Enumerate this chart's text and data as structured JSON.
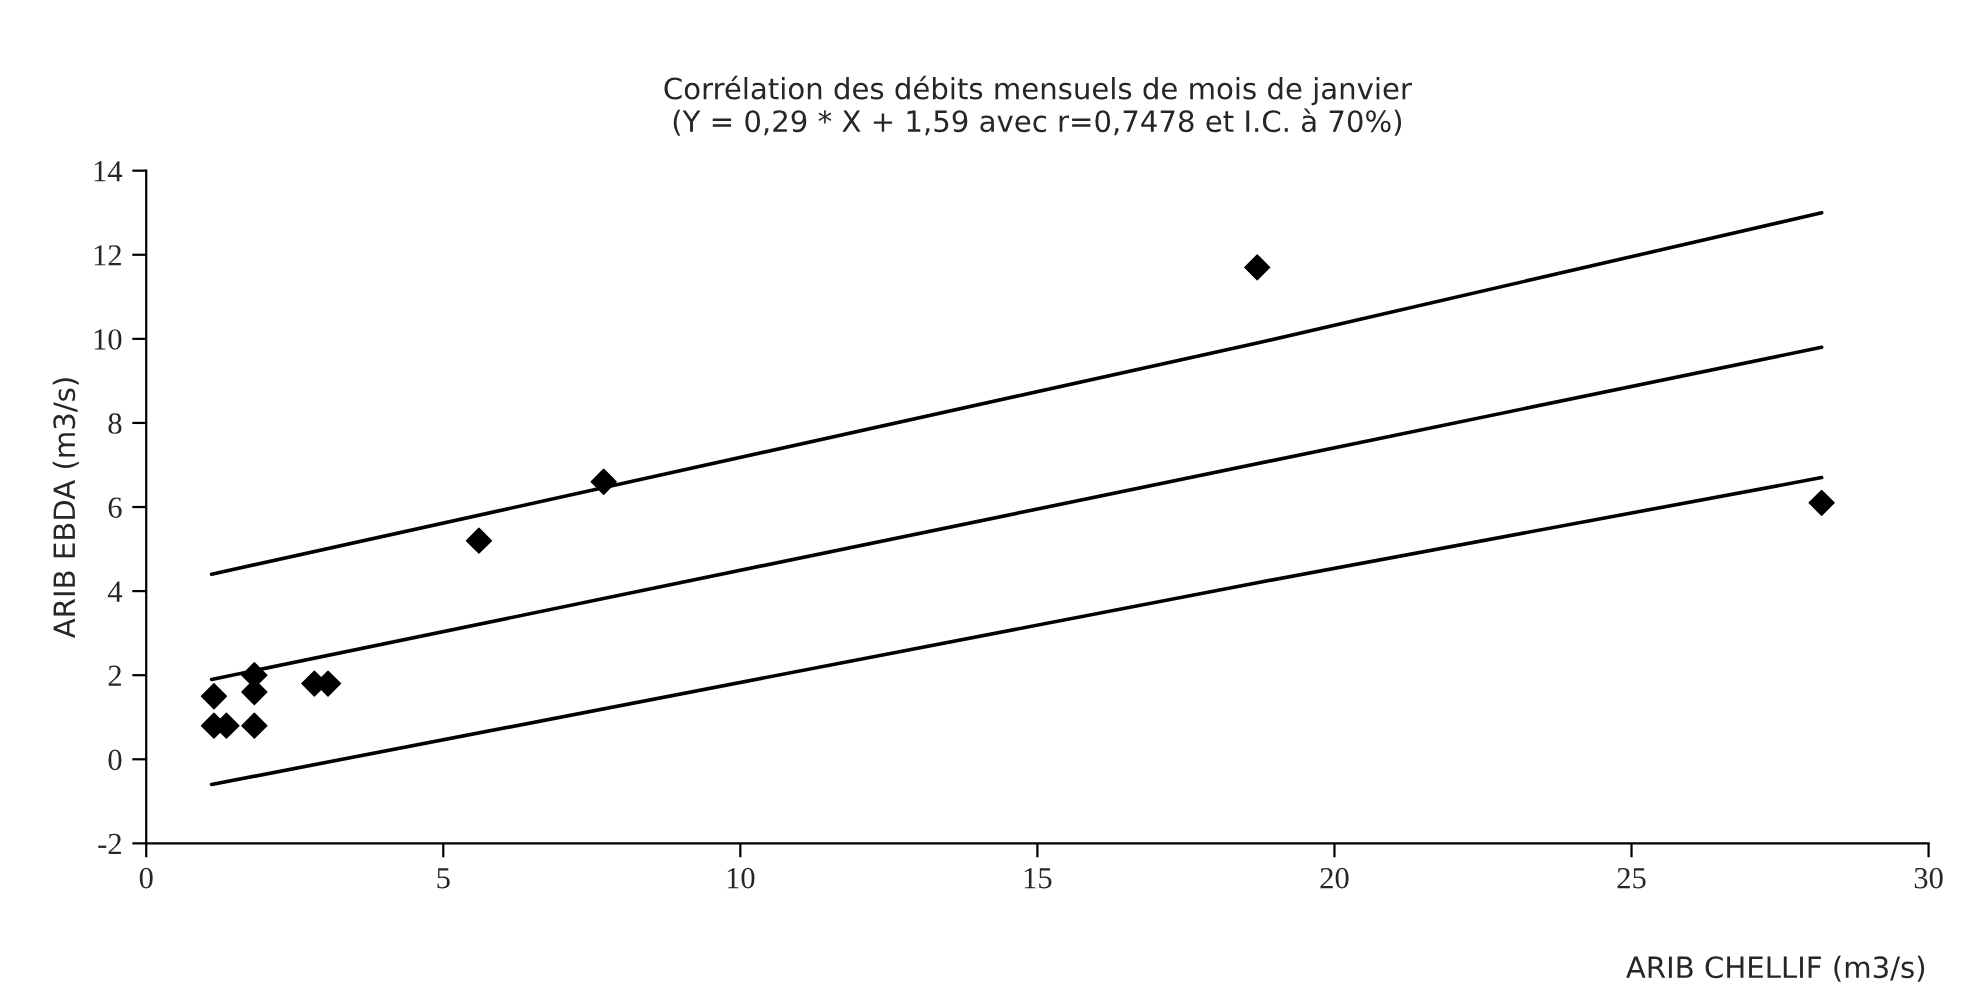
{
  "chart_data": {
    "type": "scatter",
    "title": "Corrélation des débits mensuels de mois de janvier\n(Y = 0,29 * X + 1,59 avec r=0,7478 et I.C. à 70%)",
    "xlabel": "ARIB CHELLIF (m3/s)",
    "ylabel": "ARIB EBDA (m3/s)",
    "xlim": [
      0,
      30
    ],
    "xticks": [
      0,
      5,
      10,
      15,
      20,
      25,
      30
    ],
    "ylim": [
      -2,
      14
    ],
    "yticks": [
      -2,
      0,
      2,
      4,
      6,
      8,
      10,
      12,
      14
    ],
    "grid": false,
    "legend": false,
    "series": [
      {
        "color": "#000000",
        "marker": "diamond",
        "x": [
          1.14,
          1.14,
          1.35,
          1.82,
          1.82,
          1.82,
          2.83,
          3.06,
          5.6,
          7.7,
          18.7,
          28.2
        ],
        "values": [
          1.5,
          0.8,
          0.8,
          2.0,
          1.6,
          0.8,
          1.8,
          1.8,
          5.2,
          6.6,
          11.7,
          6.1
        ]
      },
      {
        "type": "line",
        "color": "#000000",
        "line_style": "solid",
        "x": [
          1.1,
          18.7,
          28.2
        ],
        "values": [
          4.4,
          9.9,
          13.0
        ]
      },
      {
        "type": "line",
        "color": "#000000",
        "line_style": "solid",
        "x": [
          1.1,
          28.2
        ],
        "values": [
          1.9,
          9.8
        ]
      },
      {
        "type": "line",
        "color": "#000000",
        "line_style": "solid",
        "x": [
          1.1,
          18.7,
          28.2
        ],
        "values": [
          -0.6,
          4.2,
          6.7
        ]
      }
    ]
  }
}
